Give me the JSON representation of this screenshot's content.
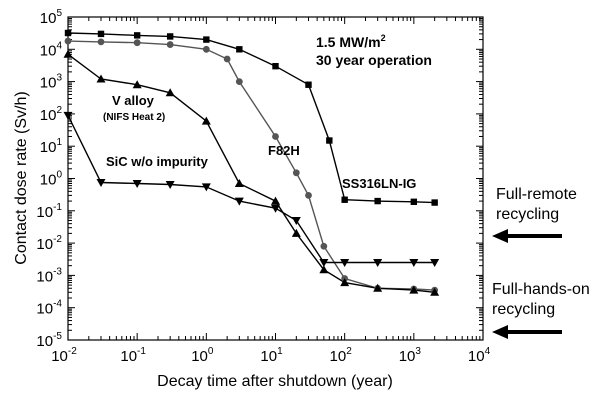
{
  "chart_data": {
    "type": "line",
    "title": "",
    "xlabel": "Decay time after shutdown (year)",
    "ylabel": "Contact dose rate (Sv/h)",
    "xscale": "log",
    "yscale": "log",
    "xlim": [
      0.01,
      10000
    ],
    "ylim": [
      1e-05,
      100000
    ],
    "x_ticks": [
      {
        "base": "10",
        "exp": "-2"
      },
      {
        "base": "10",
        "exp": "-1"
      },
      {
        "base": "10",
        "exp": "0"
      },
      {
        "base": "10",
        "exp": "1"
      },
      {
        "base": "10",
        "exp": "2"
      },
      {
        "base": "10",
        "exp": "3"
      },
      {
        "base": "10",
        "exp": "4"
      }
    ],
    "y_ticks": [
      {
        "base": "10",
        "exp": "-5"
      },
      {
        "base": "10",
        "exp": "-4"
      },
      {
        "base": "10",
        "exp": "-3"
      },
      {
        "base": "10",
        "exp": "-2"
      },
      {
        "base": "10",
        "exp": "-1"
      },
      {
        "base": "10",
        "exp": "0"
      },
      {
        "base": "10",
        "exp": "1"
      },
      {
        "base": "10",
        "exp": "2"
      },
      {
        "base": "10",
        "exp": "3"
      },
      {
        "base": "10",
        "exp": "4"
      },
      {
        "base": "10",
        "exp": "5"
      }
    ],
    "annotation": {
      "line1_prefix": "1.5 MW/m",
      "line1_sup": "2",
      "line2": "30 year operation"
    },
    "series": [
      {
        "name": "SS316LN-IG",
        "marker": "square",
        "color": "#000000",
        "points": [
          [
            0.01,
            32000
          ],
          [
            0.03,
            30000
          ],
          [
            0.1,
            27000
          ],
          [
            0.3,
            25000
          ],
          [
            1,
            20000
          ],
          [
            3,
            10000
          ],
          [
            10,
            3000
          ],
          [
            30,
            800
          ],
          [
            60,
            15
          ],
          [
            100,
            0.22
          ],
          [
            300,
            0.2
          ],
          [
            1000,
            0.19
          ],
          [
            2000,
            0.18
          ]
        ]
      },
      {
        "name": "F82H",
        "marker": "circle",
        "color": "#555555",
        "points": [
          [
            0.01,
            18000
          ],
          [
            0.03,
            17000
          ],
          [
            0.1,
            16000
          ],
          [
            0.3,
            14000
          ],
          [
            1,
            10000
          ],
          [
            2,
            5000
          ],
          [
            3,
            1000
          ],
          [
            10,
            20
          ],
          [
            20,
            1.5
          ],
          [
            30,
            0.3
          ],
          [
            50,
            0.008
          ],
          [
            100,
            0.0008
          ],
          [
            300,
            0.0004
          ],
          [
            1000,
            0.00038
          ],
          [
            2000,
            0.00035
          ]
        ]
      },
      {
        "name": "V alloy",
        "subname": "(NIFS Heat 2)",
        "marker": "triangle-up",
        "color": "#000000",
        "points": [
          [
            0.01,
            7000
          ],
          [
            0.03,
            1200
          ],
          [
            0.1,
            800
          ],
          [
            0.3,
            450
          ],
          [
            1,
            60
          ],
          [
            3,
            0.7
          ],
          [
            10,
            0.2
          ],
          [
            20,
            0.02
          ],
          [
            50,
            0.0015
          ],
          [
            100,
            0.0006
          ],
          [
            300,
            0.0004
          ],
          [
            1000,
            0.00035
          ],
          [
            2000,
            0.0003
          ]
        ]
      },
      {
        "name": "SiC w/o impurity",
        "marker": "triangle-down",
        "color": "#000000",
        "points": [
          [
            0.01,
            90
          ],
          [
            0.03,
            0.75
          ],
          [
            0.1,
            0.7
          ],
          [
            0.3,
            0.65
          ],
          [
            1,
            0.55
          ],
          [
            3,
            0.2
          ],
          [
            10,
            0.12
          ],
          [
            20,
            0.05
          ],
          [
            50,
            0.0025
          ],
          [
            100,
            0.0025
          ],
          [
            300,
            0.0025
          ],
          [
            1000,
            0.0025
          ],
          [
            2000,
            0.0025
          ]
        ]
      }
    ],
    "side_labels": [
      {
        "lines": [
          "Full-remote",
          "recycling"
        ]
      },
      {
        "lines": [
          "Full-hands-on",
          "recycling"
        ]
      }
    ]
  }
}
